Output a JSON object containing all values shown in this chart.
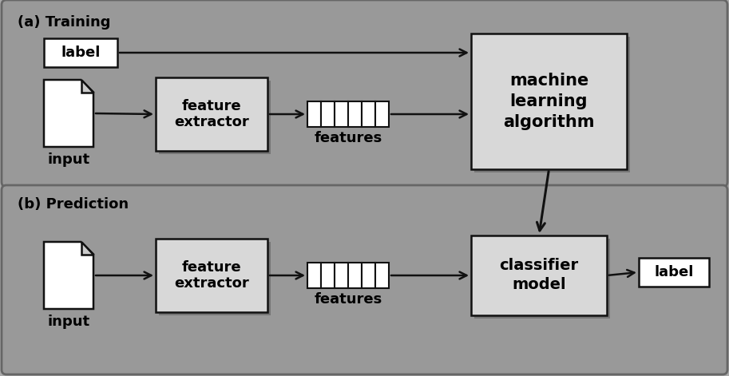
{
  "figsize": [
    9.13,
    4.71
  ],
  "dpi": 100,
  "bg_color": "#aaaaaa",
  "panel_color": "#999999",
  "panel_edge_color": "#666666",
  "box_light_color": "#d8d8d8",
  "box_white_color": "#ffffff",
  "box_edge_color": "#111111",
  "arrow_color": "#111111",
  "title_a": "(a) Training",
  "title_b": "(b) Prediction",
  "title_fontsize": 13,
  "label_fontsize": 13,
  "ml_fontsize": 15,
  "feat_label": "features",
  "input_label": "input",
  "fe_line1": "feature",
  "fe_line2": "extractor",
  "ml_line1": "machine",
  "ml_line2": "learning",
  "ml_line3": "algorithm",
  "cm_line1": "classifier",
  "cm_line2": "model",
  "label_text": "label"
}
